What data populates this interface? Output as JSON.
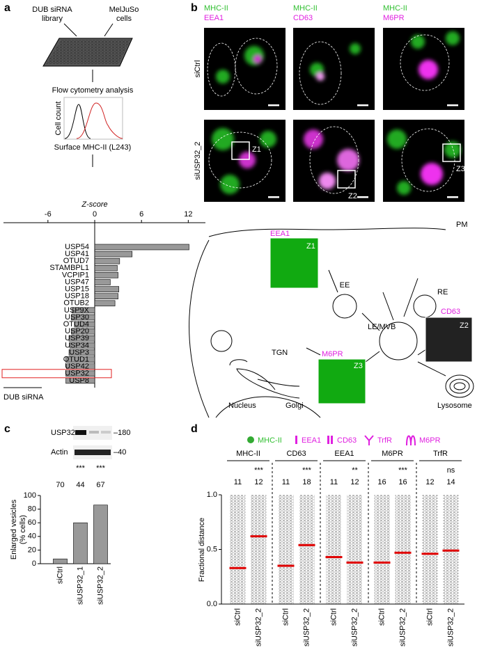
{
  "panel_labels": [
    "a",
    "b",
    "c",
    "d"
  ],
  "screen": {
    "library": [
      "DUB siRNA",
      "library"
    ],
    "cells": [
      "MelJuSo",
      "cells"
    ],
    "analysis": "Flow cytometry analysis",
    "histogram_ylabel": "Cell count",
    "histogram_xlabel": "Surface MHC-II (L243)"
  },
  "imaging": {
    "columns": [
      [
        "MHC-II",
        "EEA1"
      ],
      [
        "MHC-II",
        "CD63"
      ],
      [
        "MHC-II",
        "M6PR"
      ]
    ],
    "rows": [
      "siCtrl",
      "siUSP32_2"
    ],
    "zooms": [
      "Z1",
      "Z2",
      "Z3"
    ]
  },
  "diagram": {
    "labels": [
      "PM",
      "EE",
      "RE",
      "LE/MVB",
      "TGN",
      "Nucleus",
      "Golgi",
      "Lysosome"
    ],
    "insets": [
      {
        "marker": "EEA1",
        "zoom": "Z1"
      },
      {
        "marker": "M6PR",
        "zoom": "Z3"
      },
      {
        "marker": "CD63",
        "zoom": "Z2"
      }
    ],
    "legend": [
      "MHC-II",
      "EEA1",
      "CD63",
      "TrfR",
      "M6PR"
    ]
  },
  "blot": {
    "bands": [
      "USP32",
      "Actin"
    ],
    "markers": [
      "–180",
      "–40"
    ]
  },
  "chart_data": [
    {
      "type": "hbar",
      "x_label": "Z-score",
      "group_label": "DUB siRNA",
      "categories": [
        "USP54",
        "USP41",
        "OTUD7",
        "STAMBPL1",
        "VCPIP1",
        "USP47",
        "USP15",
        "USP18",
        "OTUB2",
        "USP9X",
        "USP30",
        "OTUD4",
        "USP20",
        "USP39",
        "USP34",
        "USP3",
        "OTUD1",
        "USP42",
        "USP32",
        "USP8"
      ],
      "values": [
        12.1,
        4.8,
        3.2,
        2.9,
        3.0,
        2.0,
        3.1,
        3.0,
        2.6,
        -2.9,
        -3.0,
        -2.6,
        -3.0,
        -3.3,
        -3.2,
        -3.3,
        -3.7,
        -3.6,
        -3.7,
        -3.7
      ],
      "color": "#999999",
      "xlim": [
        -11.7,
        14.2
      ],
      "xticks": [
        -6,
        0,
        6,
        12
      ],
      "highlight": 18,
      "highlight_color": "#e02020"
    },
    {
      "type": "bar",
      "y_label": [
        "Enlarged vesicles",
        "(% cells)"
      ],
      "categories": [
        "siCtrl",
        "siUSP32_1",
        "siUSP32_2"
      ],
      "values": [
        7,
        60,
        86
      ],
      "n": [
        70,
        44,
        67
      ],
      "significance": [
        null,
        "***",
        "***"
      ],
      "color": "#999999",
      "ylim": [
        0,
        100
      ],
      "yticks": [
        0,
        20,
        40,
        60,
        80,
        100
      ]
    },
    {
      "type": "strip",
      "y_label": "Fractional distance",
      "groups": [
        "MHC-II",
        "CD63",
        "EEA1",
        "M6PR",
        "TrfR"
      ],
      "categories": [
        "siCtrl",
        "siUSP32_2"
      ],
      "medians": [
        [
          0.33,
          0.62
        ],
        [
          0.35,
          0.54
        ],
        [
          0.43,
          0.38
        ],
        [
          0.38,
          0.47
        ],
        [
          0.46,
          0.49
        ]
      ],
      "n": [
        [
          11,
          12
        ],
        [
          11,
          18
        ],
        [
          11,
          12
        ],
        [
          16,
          16
        ],
        [
          12,
          14
        ]
      ],
      "significance": [
        "***",
        "***",
        "**",
        "***",
        "ns"
      ],
      "median_color": "#e00000",
      "ylim": [
        0,
        1
      ],
      "yticks": [
        {
          "value": 0,
          "label": "0.0"
        },
        {
          "value": 0.5,
          "label": "0.5"
        },
        {
          "value": 1,
          "label": "1.0"
        }
      ]
    }
  ]
}
